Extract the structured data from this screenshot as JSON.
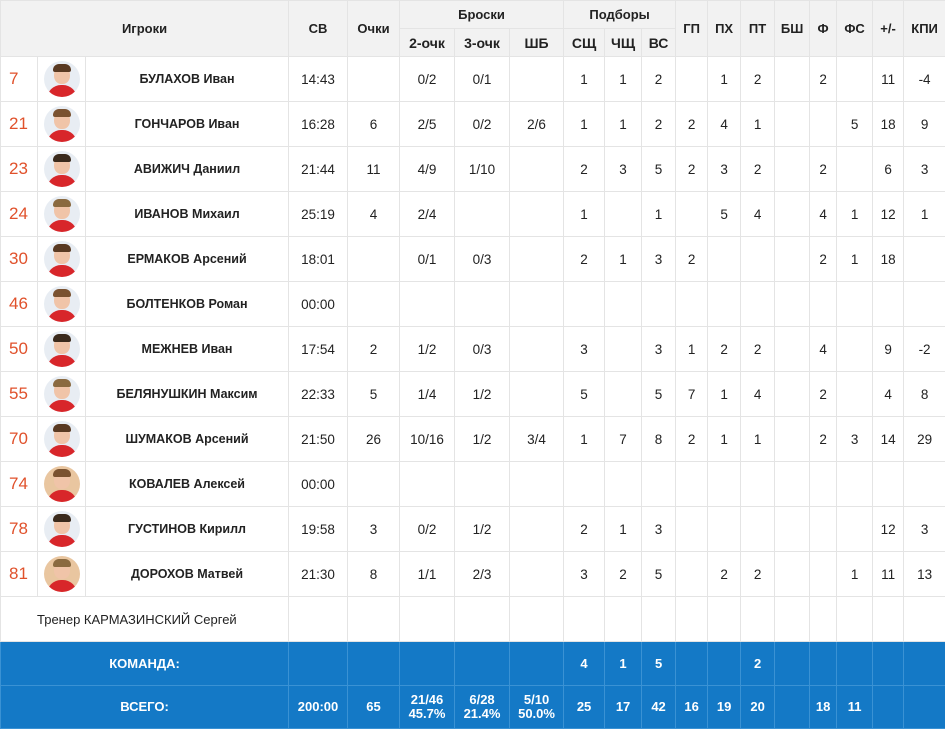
{
  "header": {
    "players": "Игроки",
    "sv": "СВ",
    "points": "Очки",
    "shots_group": "Броски",
    "shots": [
      "2-очк",
      "3-очк",
      "ШБ"
    ],
    "rebounds_group": "Подборы",
    "rebounds": [
      "СЩ",
      "ЧЩ",
      "ВС"
    ],
    "gp": "ГП",
    "px": "ПХ",
    "pt": "ПТ",
    "bsh": "БШ",
    "f": "Ф",
    "fs": "ФС",
    "pm": "+/-",
    "kpi": "КПИ"
  },
  "players": [
    {
      "num": "7",
      "name": "БУЛАХОВ Иван",
      "sv": "14:43",
      "pts": "",
      "p2": "0/2",
      "p3": "0/1",
      "ft": "",
      "or": "1",
      "dr": "1",
      "tr": "2",
      "gp": "",
      "px": "1",
      "pt": "2",
      "bsh": "",
      "f": "2",
      "fs": "",
      "pm": "11",
      "kpi": "-4"
    },
    {
      "num": "21",
      "name": "ГОНЧАРОВ Иван",
      "sv": "16:28",
      "pts": "6",
      "p2": "2/5",
      "p3": "0/2",
      "ft": "2/6",
      "or": "1",
      "dr": "1",
      "tr": "2",
      "gp": "2",
      "px": "4",
      "pt": "1",
      "bsh": "",
      "f": "",
      "fs": "5",
      "pm": "18",
      "kpi": "9"
    },
    {
      "num": "23",
      "name": "АВИЖИЧ Даниил",
      "sv": "21:44",
      "pts": "11",
      "p2": "4/9",
      "p3": "1/10",
      "ft": "",
      "or": "2",
      "dr": "3",
      "tr": "5",
      "gp": "2",
      "px": "3",
      "pt": "2",
      "bsh": "",
      "f": "2",
      "fs": "",
      "pm": "6",
      "kpi": "3"
    },
    {
      "num": "24",
      "name": "ИВАНОВ Михаил",
      "sv": "25:19",
      "pts": "4",
      "p2": "2/4",
      "p3": "",
      "ft": "",
      "or": "1",
      "dr": "",
      "tr": "1",
      "gp": "",
      "px": "5",
      "pt": "4",
      "bsh": "",
      "f": "4",
      "fs": "1",
      "pm": "12",
      "kpi": "1"
    },
    {
      "num": "30",
      "name": "ЕРМАКОВ Арсений",
      "sv": "18:01",
      "pts": "",
      "p2": "0/1",
      "p3": "0/3",
      "ft": "",
      "or": "2",
      "dr": "1",
      "tr": "3",
      "gp": "2",
      "px": "",
      "pt": "",
      "bsh": "",
      "f": "2",
      "fs": "1",
      "pm": "18",
      "kpi": ""
    },
    {
      "num": "46",
      "name": "БОЛТЕНКОВ Роман",
      "sv": "00:00",
      "pts": "",
      "p2": "",
      "p3": "",
      "ft": "",
      "or": "",
      "dr": "",
      "tr": "",
      "gp": "",
      "px": "",
      "pt": "",
      "bsh": "",
      "f": "",
      "fs": "",
      "pm": "",
      "kpi": ""
    },
    {
      "num": "50",
      "name": "МЕЖНЕВ Иван",
      "sv": "17:54",
      "pts": "2",
      "p2": "1/2",
      "p3": "0/3",
      "ft": "",
      "or": "3",
      "dr": "",
      "tr": "3",
      "gp": "1",
      "px": "2",
      "pt": "2",
      "bsh": "",
      "f": "4",
      "fs": "",
      "pm": "9",
      "kpi": "-2"
    },
    {
      "num": "55",
      "name": "БЕЛЯНУШКИН Максим",
      "sv": "22:33",
      "pts": "5",
      "p2": "1/4",
      "p3": "1/2",
      "ft": "",
      "or": "5",
      "dr": "",
      "tr": "5",
      "gp": "7",
      "px": "1",
      "pt": "4",
      "bsh": "",
      "f": "2",
      "fs": "",
      "pm": "4",
      "kpi": "8"
    },
    {
      "num": "70",
      "name": "ШУМАКОВ Арсений",
      "sv": "21:50",
      "pts": "26",
      "p2": "10/16",
      "p3": "1/2",
      "ft": "3/4",
      "or": "1",
      "dr": "7",
      "tr": "8",
      "gp": "2",
      "px": "1",
      "pt": "1",
      "bsh": "",
      "f": "2",
      "fs": "3",
      "pm": "14",
      "kpi": "29"
    },
    {
      "num": "74",
      "name": "КОВАЛЕВ Алексей",
      "sv": "00:00",
      "pts": "",
      "p2": "",
      "p3": "",
      "ft": "",
      "or": "",
      "dr": "",
      "tr": "",
      "gp": "",
      "px": "",
      "pt": "",
      "bsh": "",
      "f": "",
      "fs": "",
      "pm": "",
      "kpi": ""
    },
    {
      "num": "78",
      "name": "ГУСТИНОВ Кирилл",
      "sv": "19:58",
      "pts": "3",
      "p2": "0/2",
      "p3": "1/2",
      "ft": "",
      "or": "2",
      "dr": "1",
      "tr": "3",
      "gp": "",
      "px": "",
      "pt": "",
      "bsh": "",
      "f": "",
      "fs": "",
      "pm": "12",
      "kpi": "3"
    },
    {
      "num": "81",
      "name": "ДОРОХОВ Матвей",
      "sv": "21:30",
      "pts": "8",
      "p2": "1/1",
      "p3": "2/3",
      "ft": "",
      "or": "3",
      "dr": "2",
      "tr": "5",
      "gp": "",
      "px": "2",
      "pt": "2",
      "bsh": "",
      "f": "",
      "fs": "1",
      "pm": "11",
      "kpi": "13"
    }
  ],
  "coach": "Тренер КАРМАЗИНСКИЙ Сергей",
  "team": {
    "label": "КОМАНДА:",
    "sv": "",
    "pts": "",
    "p2": "",
    "p3": "",
    "ft": "",
    "or": "4",
    "dr": "1",
    "tr": "5",
    "gp": "",
    "px": "",
    "pt": "2",
    "bsh": "",
    "f": "",
    "fs": "",
    "pm": "",
    "kpi": ""
  },
  "total": {
    "label": "ВСЕГО:",
    "sv": "200:00",
    "pts": "65",
    "p2": "21/46",
    "p2_pct": "45.7%",
    "p3": "6/28",
    "p3_pct": "21.4%",
    "ft": "5/10",
    "ft_pct": "50.0%",
    "or": "25",
    "dr": "17",
    "tr": "42",
    "gp": "16",
    "px": "19",
    "pt": "20",
    "bsh": "",
    "f": "18",
    "fs": "11",
    "pm": "",
    "kpi": ""
  },
  "colors": {
    "number": "#e0512b",
    "footer": "#1479c6",
    "header_bg": "#f2f2f2",
    "shirt": "#d8262a"
  }
}
